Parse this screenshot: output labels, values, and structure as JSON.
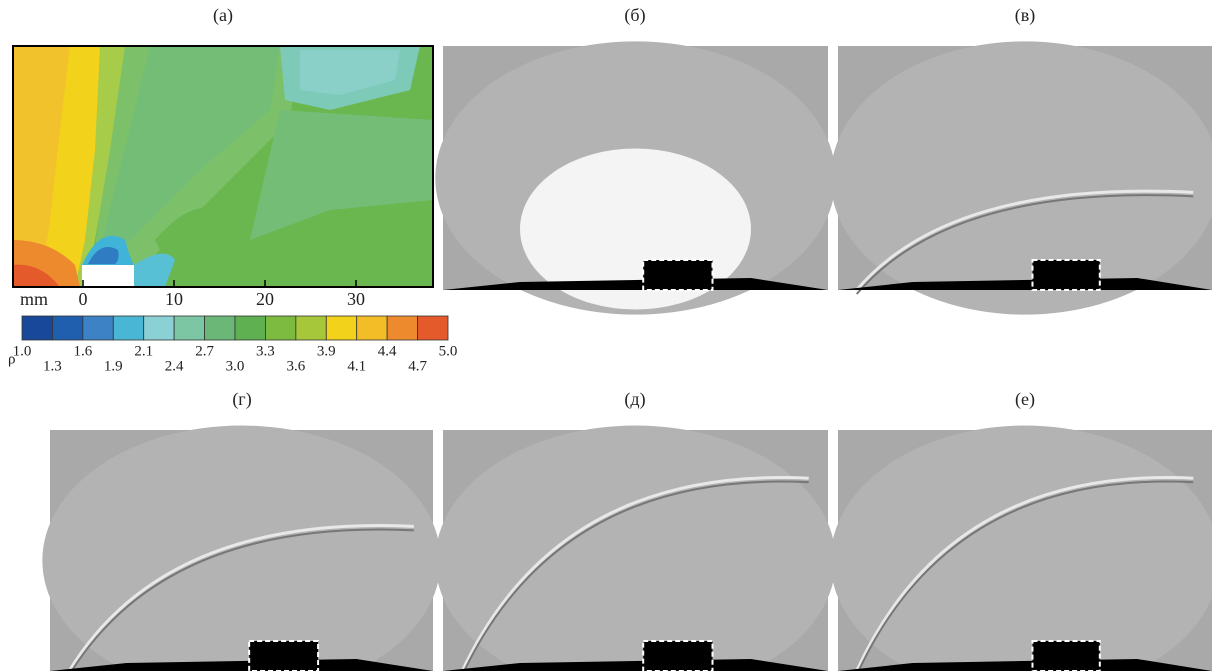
{
  "panels": [
    {
      "label": "(а)"
    },
    {
      "label": "(б)"
    },
    {
      "label": "(в)"
    },
    {
      "label": "(г)"
    },
    {
      "label": "(д)"
    },
    {
      "label": "(е)"
    }
  ],
  "contour": {
    "x_unit": "mm",
    "xticks": [
      0,
      10,
      20,
      30
    ],
    "colorbar_label": "ρ",
    "colorbar_levels": [
      "1.0",
      "1.3",
      "1.6",
      "1.9",
      "2.1",
      "2.4",
      "2.7",
      "3.0",
      "3.3",
      "3.6",
      "3.9",
      "4.1",
      "4.4",
      "4.7",
      "5.0"
    ]
  }
}
